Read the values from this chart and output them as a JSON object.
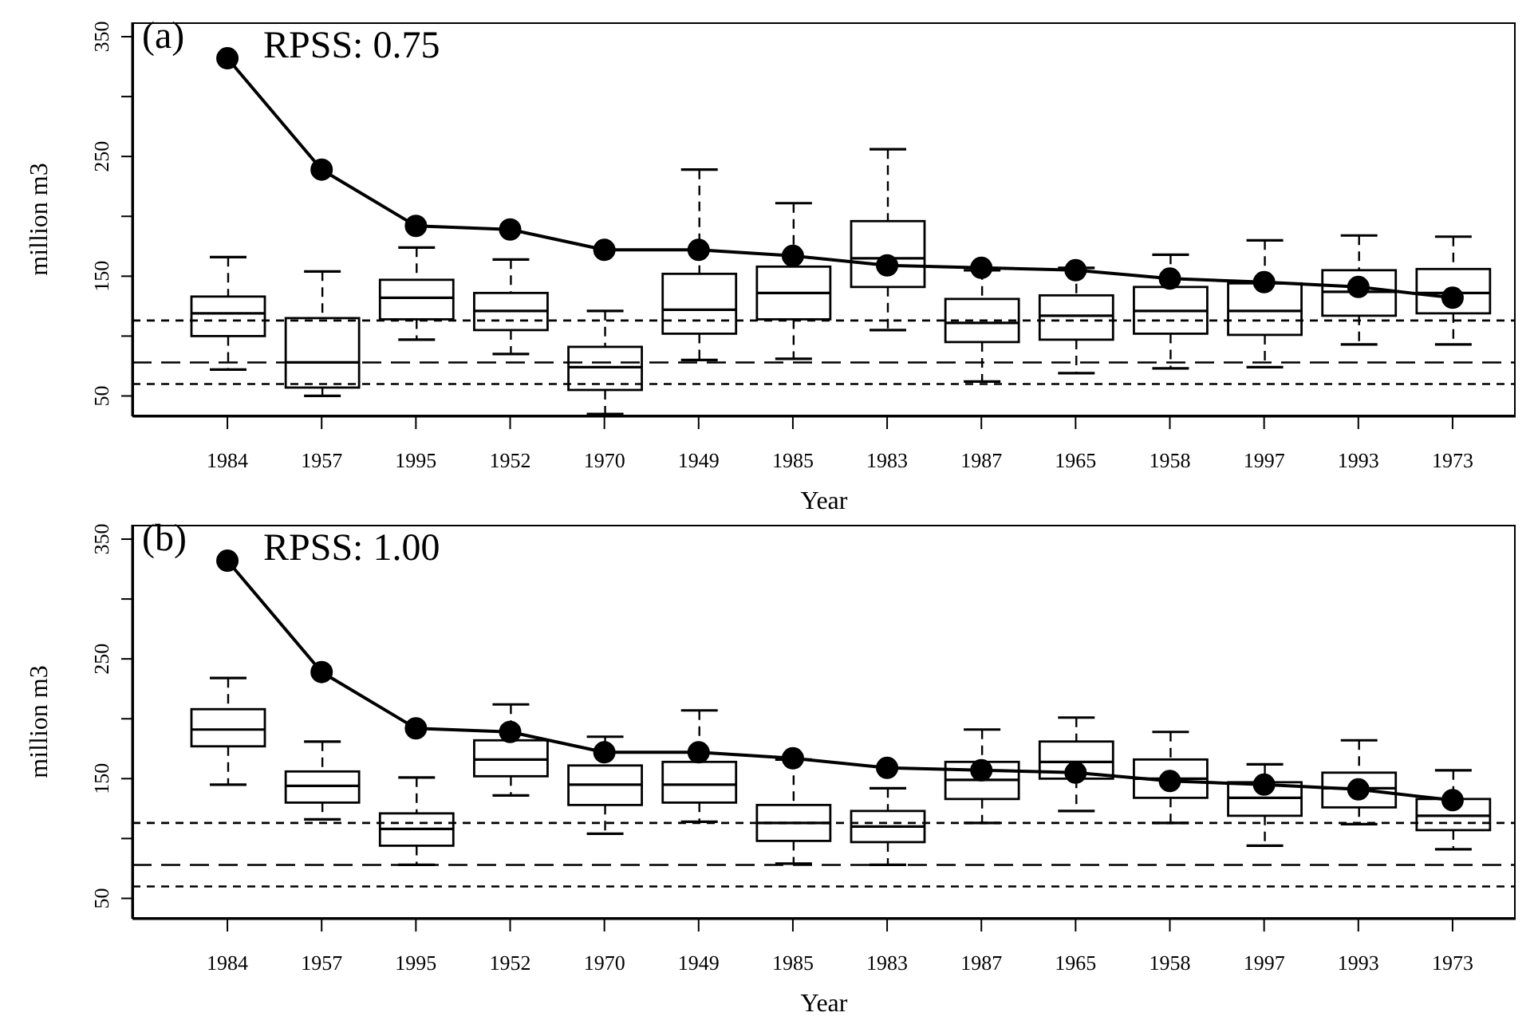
{
  "chart_data": [
    {
      "type": "box",
      "xlabel": "Year",
      "ylabel": "million m3",
      "annotations": [
        "(a)",
        "RPSS: 0.75"
      ],
      "categories": [
        "1984",
        "1957",
        "1995",
        "1952",
        "1970",
        "1949",
        "1985",
        "1983",
        "1987",
        "1965",
        "1958",
        "1997",
        "1993",
        "1973"
      ],
      "ylim": [
        33,
        362
      ],
      "yticks": [
        50,
        {
          "value": 100,
          "label": null
        },
        150,
        {
          "value": 200,
          "label": null
        },
        250,
        {
          "value": 300,
          "label": null
        },
        350
      ],
      "boxes": [
        {
          "low": 72,
          "q1": 100,
          "median": 119,
          "q3": 133,
          "high": 166
        },
        {
          "low": 50,
          "q1": 57,
          "median": 78,
          "q3": 115,
          "high": 154
        },
        {
          "low": 97,
          "q1": 114,
          "median": 132,
          "q3": 147,
          "high": 174
        },
        {
          "low": 85,
          "q1": 105,
          "median": 121,
          "q3": 136,
          "high": 164
        },
        {
          "low": 35,
          "q1": 55,
          "median": 74,
          "q3": 91,
          "high": 121
        },
        {
          "low": 80,
          "q1": 102,
          "median": 122,
          "q3": 152,
          "high": 239
        },
        {
          "low": 81,
          "q1": 114,
          "median": 136,
          "q3": 158,
          "high": 211
        },
        {
          "low": 105,
          "q1": 141,
          "median": 165,
          "q3": 196,
          "high": 256
        },
        {
          "low": 62,
          "q1": 95,
          "median": 111,
          "q3": 131,
          "high": 155
        },
        {
          "low": 69,
          "q1": 97,
          "median": 117,
          "q3": 134,
          "high": 157
        },
        {
          "low": 73,
          "q1": 102,
          "median": 121,
          "q3": 141,
          "high": 168
        },
        {
          "low": 74,
          "q1": 101,
          "median": 121,
          "q3": 144,
          "high": 180
        },
        {
          "low": 93,
          "q1": 117,
          "median": 137,
          "q3": 155,
          "high": 184
        },
        {
          "low": 93,
          "q1": 119,
          "median": 136,
          "q3": 156,
          "high": 183
        }
      ],
      "series": [
        {
          "type": "line",
          "color": "#000000",
          "marker": "circle",
          "line_style": "solid",
          "values": [
            332,
            239,
            192,
            189,
            172,
            172,
            167,
            159,
            157,
            155,
            148,
            145,
            141,
            132
          ]
        }
      ],
      "ref_lines": [
        {
          "axis": "y",
          "value": 113,
          "line_style": "dotted"
        },
        {
          "axis": "y",
          "value": 78,
          "line_style": "dashed"
        },
        {
          "axis": "y",
          "value": 60,
          "line_style": "dotted"
        }
      ]
    },
    {
      "type": "box",
      "xlabel": "Year",
      "ylabel": "million m3",
      "annotations": [
        "(b)",
        "RPSS: 1.00"
      ],
      "categories": [
        "1984",
        "1957",
        "1995",
        "1952",
        "1970",
        "1949",
        "1985",
        "1983",
        "1987",
        "1965",
        "1958",
        "1997",
        "1993",
        "1973"
      ],
      "ylim": [
        33,
        362
      ],
      "yticks": [
        50,
        {
          "value": 100,
          "label": null
        },
        150,
        {
          "value": 200,
          "label": null
        },
        250,
        {
          "value": 300,
          "label": null
        },
        350
      ],
      "boxes": [
        {
          "low": 145,
          "q1": 177,
          "median": 191,
          "q3": 208,
          "high": 234
        },
        {
          "low": 116,
          "q1": 130,
          "median": 144,
          "q3": 156,
          "high": 181
        },
        {
          "low": 78,
          "q1": 94,
          "median": 108,
          "q3": 121,
          "high": 151
        },
        {
          "low": 136,
          "q1": 152,
          "median": 166,
          "q3": 182,
          "high": 212
        },
        {
          "low": 104,
          "q1": 128,
          "median": 145,
          "q3": 161,
          "high": 185
        },
        {
          "low": 114,
          "q1": 130,
          "median": 145,
          "q3": 164,
          "high": 207
        },
        {
          "low": 79,
          "q1": 98,
          "median": 113,
          "q3": 128,
          "high": 166
        },
        {
          "low": 78,
          "q1": 97,
          "median": 110,
          "q3": 123,
          "high": 142
        },
        {
          "low": 113,
          "q1": 133,
          "median": 149,
          "q3": 164,
          "high": 191
        },
        {
          "low": 123,
          "q1": 150,
          "median": 164,
          "q3": 181,
          "high": 201
        },
        {
          "low": 113,
          "q1": 134,
          "median": 150,
          "q3": 166,
          "high": 189
        },
        {
          "low": 94,
          "q1": 119,
          "median": 134,
          "q3": 147,
          "high": 162
        },
        {
          "low": 112,
          "q1": 126,
          "median": 142,
          "q3": 155,
          "high": 182
        },
        {
          "low": 91,
          "q1": 107,
          "median": 119,
          "q3": 133,
          "high": 157
        }
      ],
      "series": [
        {
          "type": "line",
          "color": "#000000",
          "marker": "circle",
          "line_style": "solid",
          "values": [
            332,
            239,
            192,
            189,
            172,
            172,
            167,
            159,
            157,
            155,
            148,
            145,
            141,
            132
          ]
        }
      ],
      "ref_lines": [
        {
          "axis": "y",
          "value": 113,
          "line_style": "dotted"
        },
        {
          "axis": "y",
          "value": 78,
          "line_style": "dashed"
        },
        {
          "axis": "y",
          "value": 60,
          "line_style": "dotted"
        }
      ]
    }
  ]
}
